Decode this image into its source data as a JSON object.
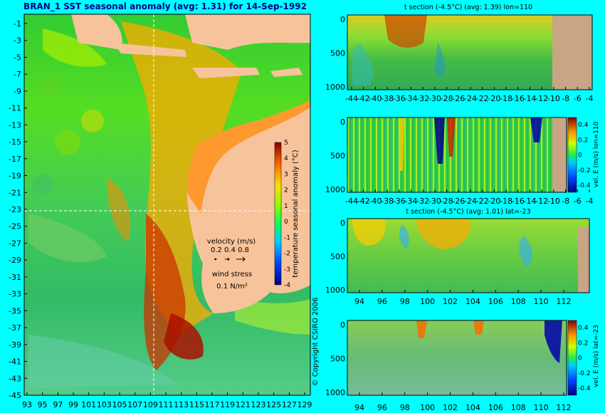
{
  "chart_data": [
    {
      "type": "heatmap",
      "title": "BRAN_1 SST seasonal anomaly (avg: 1.31) for 14-Sep-1992",
      "x_ticks": [
        "93",
        "95",
        "97",
        "99",
        "101",
        "103",
        "105",
        "107",
        "109",
        "111",
        "113",
        "115",
        "117",
        "119",
        "121",
        "123",
        "125",
        "127",
        "129"
      ],
      "y_ticks": [
        "-1",
        "-3",
        "-5",
        "-7",
        "-9",
        "-11",
        "-13",
        "-15",
        "-17",
        "-19",
        "-21",
        "-23",
        "-25",
        "-27",
        "-29",
        "-31",
        "-33",
        "-35",
        "-37",
        "-39",
        "-41",
        "-43",
        "-45"
      ],
      "xlim": [
        93,
        130
      ],
      "ylim": [
        -45,
        0
      ],
      "colorbar": {
        "label": "temperature seasonal anomaly (°C)",
        "ticks": [
          "-4",
          "-3",
          "-2",
          "-1",
          "0",
          "1",
          "2",
          "3",
          "4",
          "5"
        ],
        "range": [
          -4,
          5
        ]
      },
      "legend": {
        "velocity_title": "velocity (m/s)",
        "velocity_values": "0.2 0.4 0.8",
        "wind_title": "wind stress",
        "wind_value": "0.1 N/m²"
      },
      "crosshair": {
        "lon": 110,
        "lat": -23
      },
      "copyright": "© Copyright CSIRO 2006"
    },
    {
      "type": "heatmap",
      "title": "t section (-4.5°C) (avg: 1.39) lon=110",
      "x_ticks": [
        "-44",
        "-42",
        "-40",
        "-38",
        "-36",
        "-34",
        "-32",
        "-30",
        "-28",
        "-26",
        "-24",
        "-22",
        "-20",
        "-18",
        "-16",
        "-14",
        "-12",
        "-10",
        "-8",
        "-6",
        "-4"
      ],
      "y_ticks": [
        "0",
        "500",
        "1000"
      ]
    },
    {
      "type": "heatmap",
      "title": "",
      "x_ticks": [
        "-44",
        "-42",
        "-40",
        "-38",
        "-36",
        "-34",
        "-32",
        "-30",
        "-28",
        "-26",
        "-24",
        "-22",
        "-20",
        "-18",
        "-16",
        "-14",
        "-12",
        "-10",
        "-8",
        "-6",
        "-4"
      ],
      "y_ticks": [
        "0",
        "500",
        "1000"
      ],
      "colorbar": {
        "label": "vel. E (m/s) lon=110",
        "ticks": [
          "0.4",
          "0.2",
          "0",
          "-0.2",
          "-0.4"
        ]
      }
    },
    {
      "type": "heatmap",
      "title": "t section (-4.5°C) (avg: 1.01) lat=-23",
      "x_ticks": [
        "94",
        "96",
        "98",
        "100",
        "102",
        "104",
        "106",
        "108",
        "110",
        "112"
      ],
      "y_ticks": [
        "0",
        "500",
        "1000"
      ]
    },
    {
      "type": "heatmap",
      "title": "",
      "x_ticks": [
        "94",
        "96",
        "98",
        "100",
        "102",
        "104",
        "106",
        "108",
        "110",
        "112"
      ],
      "y_ticks": [
        "0",
        "500",
        "1000"
      ],
      "colorbar": {
        "label": "vel. E (m/s) lat=-23",
        "ticks": [
          "0.4",
          "0.2",
          "0",
          "-0.2",
          "-0.4"
        ]
      }
    }
  ]
}
